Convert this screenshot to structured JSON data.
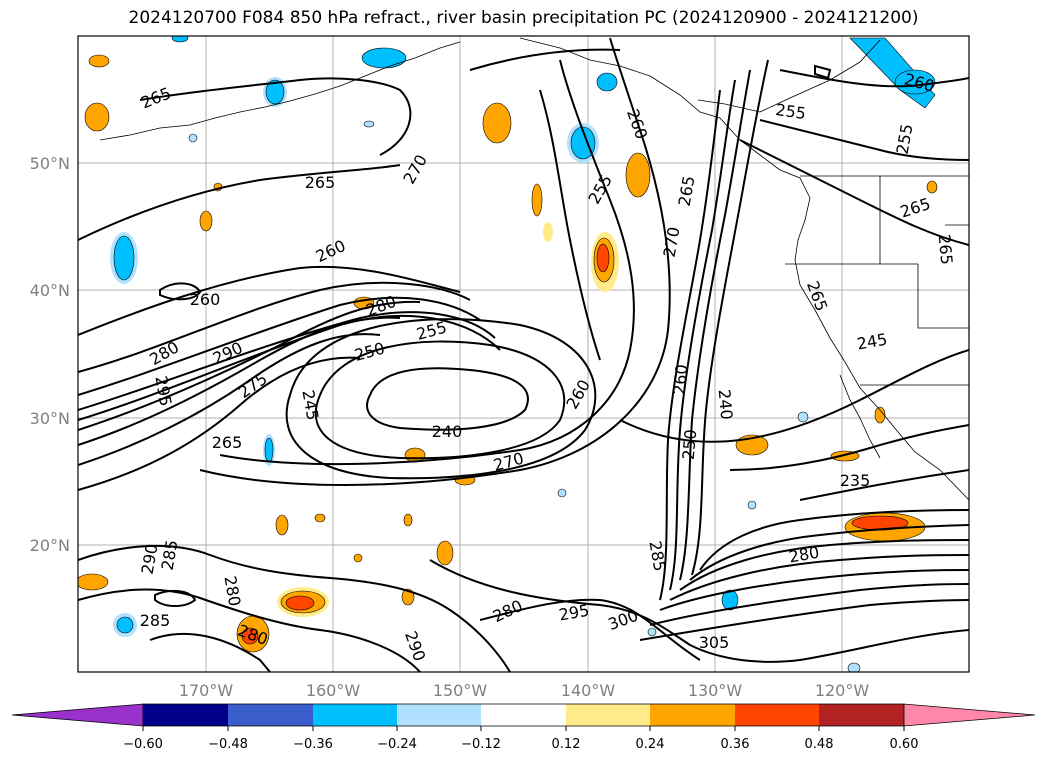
{
  "title": "2024120700 F084 850 hPa refract., river basin precipitation PC (2024120900 - 2024121200)",
  "map": {
    "lat_labels": [
      "50°N",
      "40°N",
      "30°N",
      "20°N"
    ],
    "lon_labels": [
      "170°W",
      "160°W",
      "150°W",
      "140°W",
      "130°W",
      "120°W"
    ],
    "grid": true
  },
  "contour_labels": [
    "265",
    "265",
    "270",
    "265",
    "260",
    "260",
    "255",
    "255",
    "250",
    "245",
    "240",
    "280",
    "290",
    "295",
    "275",
    "265",
    "270",
    "260",
    "255",
    "265",
    "270",
    "260",
    "255",
    "265",
    "265",
    "245",
    "240",
    "250",
    "260",
    "235",
    "280",
    "290",
    "285",
    "280",
    "280",
    "285",
    "290",
    "280",
    "295",
    "300",
    "305",
    "285",
    "280",
    "260"
  ],
  "colorbar": {
    "ticks": [
      "−0.60",
      "−0.48",
      "−0.36",
      "−0.24",
      "−0.12",
      "0.12",
      "0.24",
      "0.36",
      "0.48",
      "0.60"
    ],
    "colors": [
      "#9932cc",
      "#00008b",
      "#3a5fcd",
      "#00bfff",
      "#b0e2ff",
      "#ffffff",
      "#ffeb8a",
      "#ffa500",
      "#ff4500",
      "#b22222",
      "#ff88aa"
    ]
  }
}
